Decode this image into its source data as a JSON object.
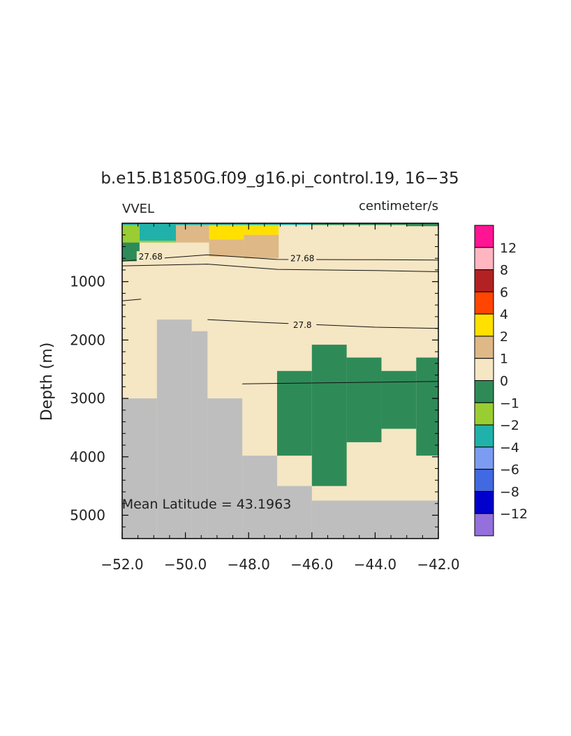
{
  "chart_data": {
    "type": "heatmap",
    "title": "b.e15.B1850G.f09_g16.pi_control.19, 16−35",
    "left_string": "VVEL",
    "right_string": "centimeter/s",
    "ylabel": "Depth (m)",
    "annotation": "Mean Latitude = 43.1963",
    "xlim": [
      -52.0,
      -42.0
    ],
    "ylim": [
      5400,
      0
    ],
    "y_reversed": true,
    "x_ticks": [
      -52.0,
      -50.0,
      -48.0,
      -46.0,
      -44.0,
      -42.0
    ],
    "x_tick_labels": [
      "−52.0",
      "−50.0",
      "−48.0",
      "−46.0",
      "−44.0",
      "−42.0"
    ],
    "y_ticks": [
      1000,
      2000,
      3000,
      4000,
      5000
    ],
    "y_tick_labels": [
      "1000",
      "2000",
      "3000",
      "4000",
      "5000"
    ],
    "colorbar": {
      "labels": [
        "12",
        "8",
        "6",
        "4",
        "2",
        "1",
        "0",
        "−1",
        "−2",
        "−4",
        "−6",
        "−8",
        "−12"
      ],
      "colors": [
        "#ff1493",
        "#ffb6c1",
        "#b22222",
        "#ff4500",
        "#ffe000",
        "#deb887",
        "#f5e6c4",
        "#2e8b57",
        "#9acd32",
        "#20b2aa",
        "#7b9cf0",
        "#4169e1",
        "#0000cd",
        "#9370db"
      ]
    },
    "background_color": "#f5e6c4",
    "land_color": "#bebebe",
    "land_columns": [
      {
        "x0": -52.0,
        "x1": -50.9,
        "bottom": 3000
      },
      {
        "x0": -50.9,
        "x1": -49.8,
        "bottom": 1650
      },
      {
        "x0": -49.8,
        "x1": -49.3,
        "bottom": 1850
      },
      {
        "x0": -49.3,
        "x1": -48.2,
        "bottom": 3000
      },
      {
        "x0": -48.2,
        "x1": -47.1,
        "bottom": 3980
      },
      {
        "x0": -47.1,
        "x1": -46.0,
        "bottom": 4500
      },
      {
        "x0": -46.0,
        "x1": -42.0,
        "bottom": 4750
      }
    ],
    "cells": [
      {
        "x0": -52.0,
        "x1": -51.45,
        "y0": 0,
        "y1": 330,
        "color": "#9acd32"
      },
      {
        "x0": -52.0,
        "x1": -51.45,
        "y0": 330,
        "y1": 650,
        "color": "#2e8b57"
      },
      {
        "x0": -51.45,
        "x1": -50.3,
        "y0": 0,
        "y1": 300,
        "color": "#20b2aa"
      },
      {
        "x0": -51.45,
        "x1": -50.3,
        "y0": 300,
        "y1": 330,
        "color": "#9acd32"
      },
      {
        "x0": -50.3,
        "x1": -49.25,
        "y0": 0,
        "y1": 330,
        "color": "#deb887"
      },
      {
        "x0": -49.25,
        "x1": -48.15,
        "y0": 0,
        "y1": 280,
        "color": "#ffe000"
      },
      {
        "x0": -49.25,
        "x1": -48.15,
        "y0": 280,
        "y1": 570,
        "color": "#deb887"
      },
      {
        "x0": -48.15,
        "x1": -47.05,
        "y0": 0,
        "y1": 200,
        "color": "#ffe000"
      },
      {
        "x0": -48.15,
        "x1": -47.05,
        "y0": 200,
        "y1": 600,
        "color": "#deb887"
      },
      {
        "x0": -52.0,
        "x1": -42.0,
        "y0": 0,
        "y1": 30,
        "color": "#20b2aa"
      },
      {
        "x0": -46.0,
        "x1": -43.0,
        "y0": 0,
        "y1": 30,
        "color": "#2e8b57"
      },
      {
        "x0": -43.0,
        "x1": -42.0,
        "y0": 0,
        "y1": 50,
        "color": "#2e8b57"
      },
      {
        "x0": -47.1,
        "x1": -46.0,
        "y0": 2530,
        "y1": 3980,
        "color": "#2e8b57"
      },
      {
        "x0": -46.0,
        "x1": -44.9,
        "y0": 2080,
        "y1": 4500,
        "color": "#2e8b57"
      },
      {
        "x0": -44.9,
        "x1": -43.8,
        "y0": 2300,
        "y1": 3750,
        "color": "#2e8b57"
      },
      {
        "x0": -43.8,
        "x1": -42.7,
        "y0": 2530,
        "y1": 3520,
        "color": "#2e8b57"
      },
      {
        "x0": -42.7,
        "x1": -42.0,
        "y0": 2300,
        "y1": 3980,
        "color": "#2e8b57"
      }
    ],
    "contours": [
      {
        "label": "27.68",
        "label_at": [
          -51.1,
          575
        ],
        "points": [
          [
            -52.0,
            650
          ],
          [
            -49.3,
            540
          ],
          [
            -47.1,
            620
          ],
          [
            -44.0,
            625
          ],
          [
            -42.0,
            630
          ]
        ]
      },
      {
        "label": "27.68",
        "label_at": [
          -46.3,
          605
        ],
        "points": [
          [
            -52.0,
            730
          ],
          [
            -49.3,
            700
          ],
          [
            -47.1,
            790
          ],
          [
            -44.0,
            810
          ],
          [
            -42.0,
            830
          ]
        ]
      },
      {
        "label": "",
        "label_at": null,
        "points": [
          [
            -52.0,
            1330
          ],
          [
            -51.4,
            1300
          ]
        ]
      },
      {
        "label": "27.8",
        "label_at": [
          -46.3,
          1745
        ],
        "points": [
          [
            -49.3,
            1650
          ],
          [
            -47.5,
            1700
          ],
          [
            -44.0,
            1780
          ],
          [
            -42.0,
            1800
          ]
        ]
      },
      {
        "label": "",
        "label_at": null,
        "points": [
          [
            -48.2,
            2750
          ],
          [
            -42.0,
            2710
          ]
        ]
      }
    ]
  }
}
